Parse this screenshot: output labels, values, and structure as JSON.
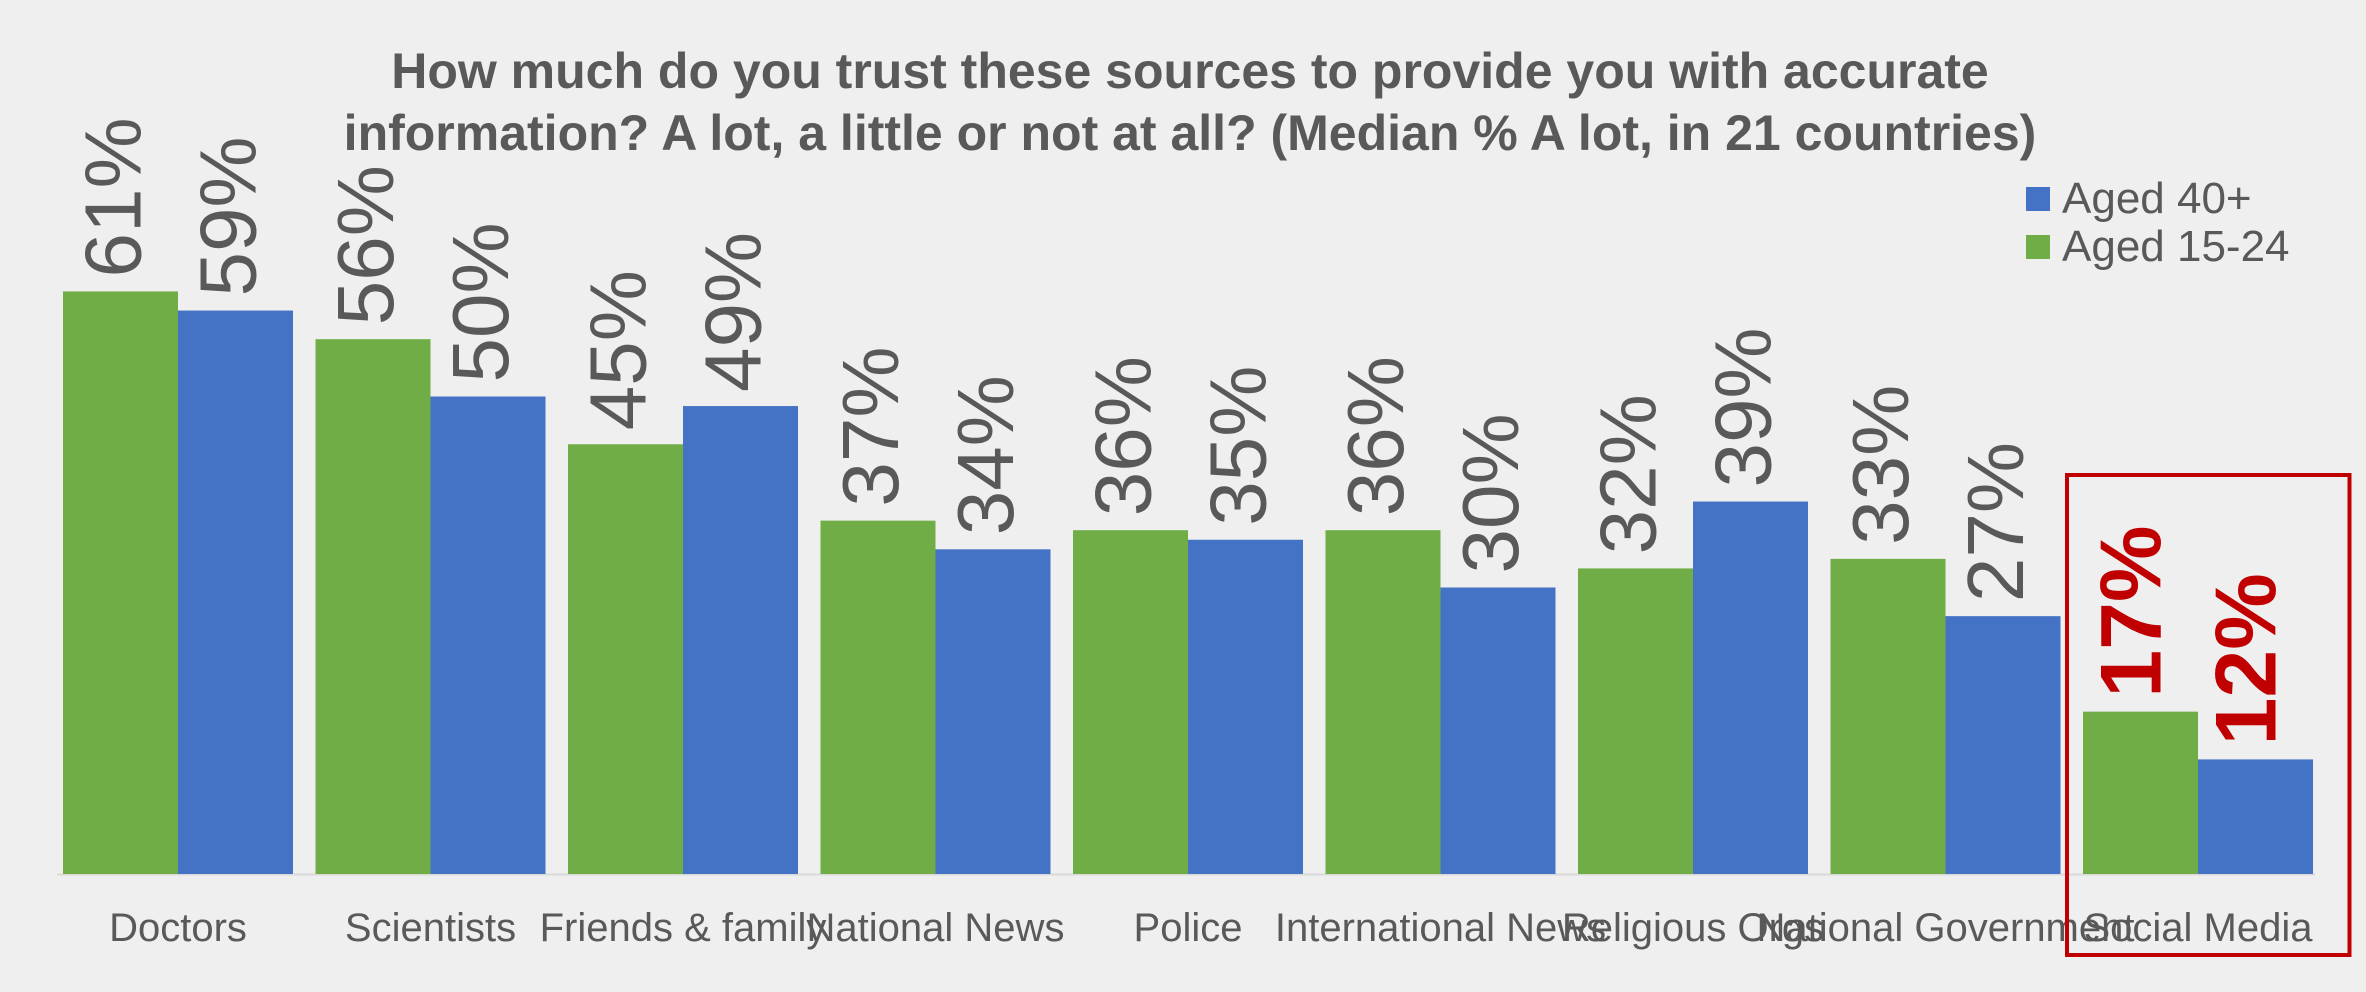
{
  "chart_data": {
    "type": "bar",
    "title": "How much do you trust these sources to provide you with accurate information? A lot, a little or not at all? (Median % A lot, in 21 countries)",
    "title_lines": [
      "How much do you trust these sources to provide you with accurate",
      "information? A lot, a little or not at all? (Median % A lot, in 21 countries)"
    ],
    "categories": [
      "Doctors",
      "Scientists",
      "Friends & family",
      "National News",
      "Police",
      "International News",
      "Religious Orgs",
      "National Government",
      "Social Media"
    ],
    "series": [
      {
        "name": "Aged 15-24",
        "color": "#70ad47",
        "values": [
          61,
          56,
          45,
          37,
          36,
          36,
          32,
          33,
          17
        ]
      },
      {
        "name": "Aged 40+",
        "color": "#4472c4",
        "values": [
          59,
          50,
          49,
          34,
          35,
          30,
          39,
          27,
          12
        ]
      }
    ],
    "legend": {
      "position": "top-right",
      "order": [
        "Aged 40+",
        "Aged 15-24"
      ]
    },
    "value_label_suffix": "%",
    "highlight": {
      "category": "Social Media",
      "color": "#c00000"
    },
    "ylim": [
      0,
      70
    ],
    "grid": false,
    "label_color": "#595959"
  }
}
